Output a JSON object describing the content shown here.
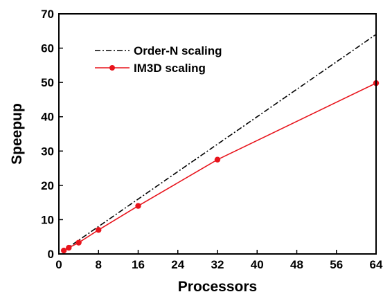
{
  "chart_data": {
    "type": "line",
    "title": "",
    "xlabel": "Processors",
    "ylabel": "Speepup",
    "xlim": [
      0,
      64
    ],
    "ylim": [
      0,
      70
    ],
    "x_ticks": [
      "0",
      "8",
      "16",
      "24",
      "32",
      "40",
      "48",
      "56",
      "64"
    ],
    "y_ticks": [
      "0",
      "10",
      "20",
      "30",
      "40",
      "50",
      "60",
      "70"
    ],
    "grid": false,
    "legend_position": "top-left",
    "series": [
      {
        "name": "Order-N scaling",
        "style": "dash-dot",
        "color": "#000000",
        "markers": false,
        "x": [
          1,
          64
        ],
        "y": [
          1,
          64
        ]
      },
      {
        "name": "IM3D scaling",
        "style": "solid",
        "color": "#e8141c",
        "markers": true,
        "x": [
          1,
          2,
          4,
          8,
          16,
          32,
          64
        ],
        "y": [
          1.0,
          1.8,
          3.3,
          7.0,
          14.0,
          27.5,
          49.8
        ]
      }
    ]
  }
}
